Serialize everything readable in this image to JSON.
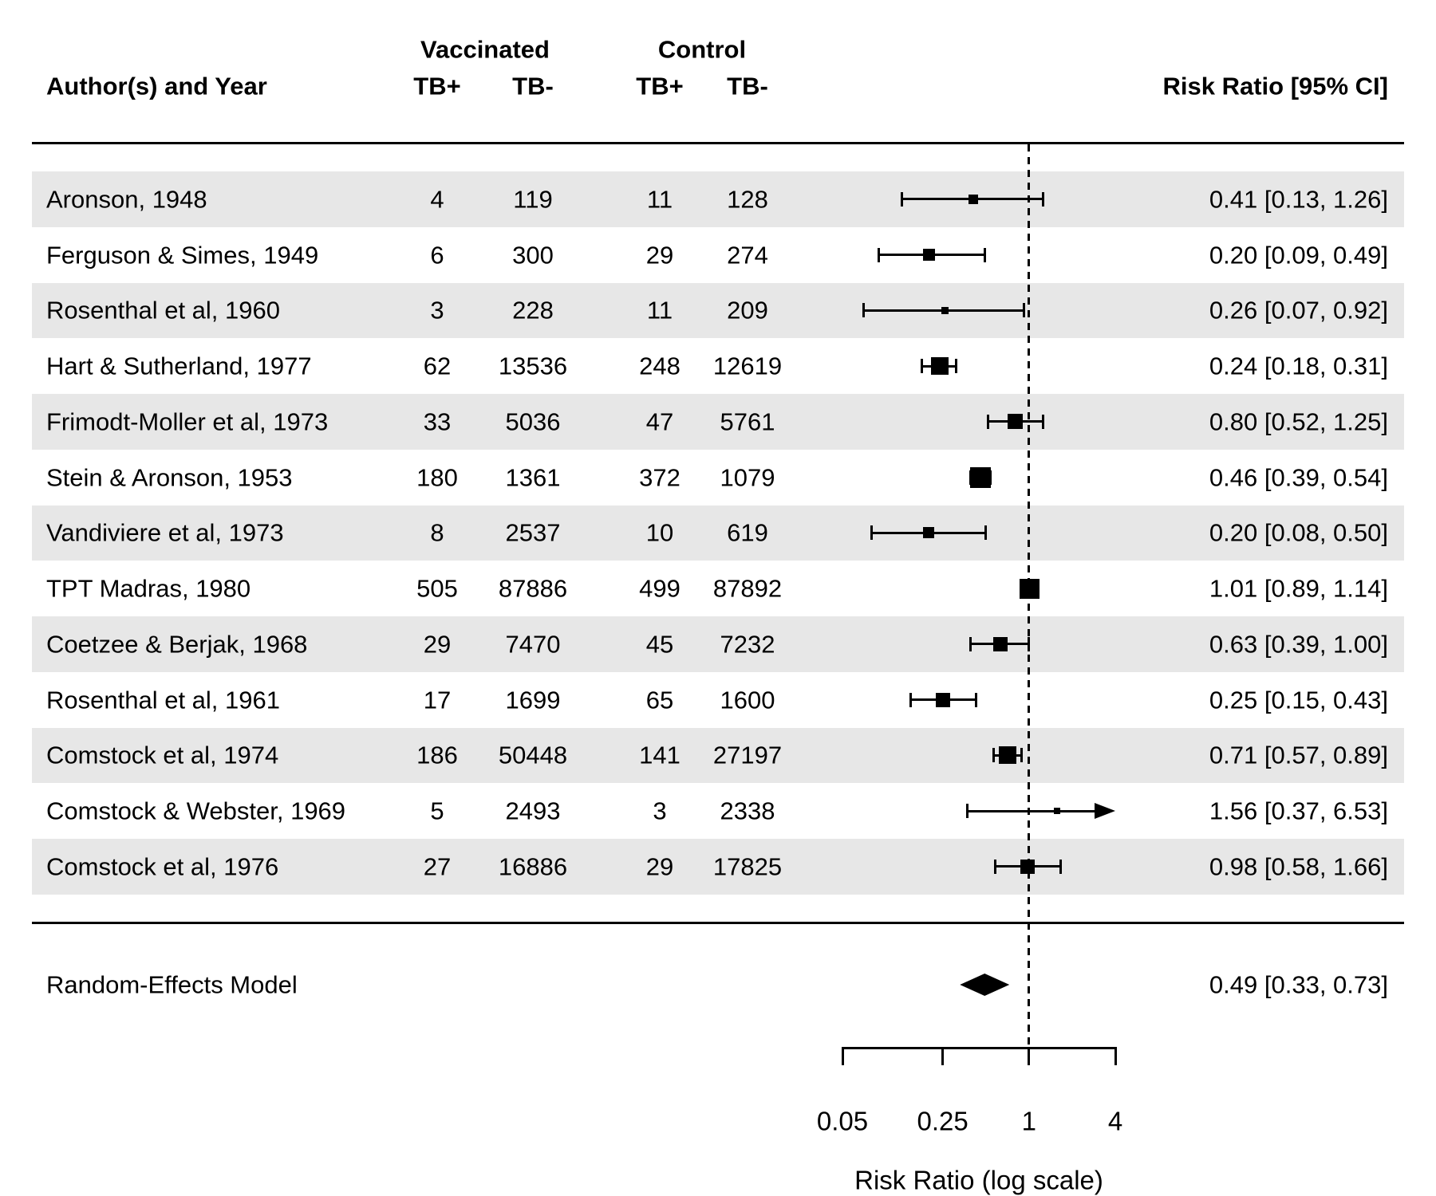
{
  "header": {
    "author_col": "Author(s) and Year",
    "vaccinated_group": "Vaccinated",
    "control_group": "Control",
    "tb_pos": "TB+",
    "tb_neg": "TB-",
    "rr_col": "Risk Ratio [95% CI]"
  },
  "summary_row": {
    "label": "Random-Effects Model",
    "ci_text": "0.49 [0.33, 0.73]"
  },
  "chart_data": {
    "type": "forest",
    "title": "",
    "x_axis": {
      "label": "Risk Ratio (log scale)",
      "scale": "log",
      "ticks": [
        0.05,
        0.25,
        1,
        4
      ],
      "tick_labels": [
        "0.05",
        "0.25",
        "1",
        "4"
      ],
      "xlim": [
        0.05,
        4
      ],
      "reference_line": 1
    },
    "columns": [
      "Author(s) and Year",
      "Vaccinated TB+",
      "Vaccinated TB-",
      "Control TB+",
      "Control TB-",
      "Risk Ratio [95% CI]"
    ],
    "studies": [
      {
        "author": "Aronson, 1948",
        "vaccinated_tb_pos": 4,
        "vaccinated_tb_neg": 119,
        "control_tb_pos": 11,
        "control_tb_neg": 128,
        "rr": 0.41,
        "ci_low": 0.13,
        "ci_high": 1.26,
        "ci_text": "0.41 [0.13, 1.26]",
        "point_size": 12,
        "shaded": true
      },
      {
        "author": "Ferguson & Simes, 1949",
        "vaccinated_tb_pos": 6,
        "vaccinated_tb_neg": 300,
        "control_tb_pos": 29,
        "control_tb_neg": 274,
        "rr": 0.2,
        "ci_low": 0.09,
        "ci_high": 0.49,
        "ci_text": "0.20 [0.09, 0.49]",
        "point_size": 15,
        "shaded": false
      },
      {
        "author": "Rosenthal et al, 1960",
        "vaccinated_tb_pos": 3,
        "vaccinated_tb_neg": 228,
        "control_tb_pos": 11,
        "control_tb_neg": 209,
        "rr": 0.26,
        "ci_low": 0.07,
        "ci_high": 0.92,
        "ci_text": "0.26 [0.07, 0.92]",
        "point_size": 9,
        "shaded": true
      },
      {
        "author": "Hart & Sutherland, 1977",
        "vaccinated_tb_pos": 62,
        "vaccinated_tb_neg": 13536,
        "control_tb_pos": 248,
        "control_tb_neg": 12619,
        "rr": 0.24,
        "ci_low": 0.18,
        "ci_high": 0.31,
        "ci_text": "0.24 [0.18, 0.31]",
        "point_size": 22,
        "shaded": false
      },
      {
        "author": "Frimodt-Moller et al, 1973",
        "vaccinated_tb_pos": 33,
        "vaccinated_tb_neg": 5036,
        "control_tb_pos": 47,
        "control_tb_neg": 5761,
        "rr": 0.8,
        "ci_low": 0.52,
        "ci_high": 1.25,
        "ci_text": "0.80 [0.52, 1.25]",
        "point_size": 19,
        "shaded": true
      },
      {
        "author": "Stein & Aronson, 1953",
        "vaccinated_tb_pos": 180,
        "vaccinated_tb_neg": 1361,
        "control_tb_pos": 372,
        "control_tb_neg": 1079,
        "rr": 0.46,
        "ci_low": 0.39,
        "ci_high": 0.54,
        "ci_text": "0.46 [0.39, 0.54]",
        "point_size": 26,
        "shaded": false
      },
      {
        "author": "Vandiviere et al, 1973",
        "vaccinated_tb_pos": 8,
        "vaccinated_tb_neg": 2537,
        "control_tb_pos": 10,
        "control_tb_neg": 619,
        "rr": 0.2,
        "ci_low": 0.08,
        "ci_high": 0.5,
        "ci_text": "0.20 [0.08, 0.50]",
        "point_size": 14,
        "shaded": true
      },
      {
        "author": "TPT Madras, 1980",
        "vaccinated_tb_pos": 505,
        "vaccinated_tb_neg": 87886,
        "control_tb_pos": 499,
        "control_tb_neg": 87892,
        "rr": 1.01,
        "ci_low": 0.89,
        "ci_high": 1.14,
        "ci_text": "1.01 [0.89, 1.14]",
        "point_size": 25,
        "shaded": false
      },
      {
        "author": "Coetzee & Berjak, 1968",
        "vaccinated_tb_pos": 29,
        "vaccinated_tb_neg": 7470,
        "control_tb_pos": 45,
        "control_tb_neg": 7232,
        "rr": 0.63,
        "ci_low": 0.39,
        "ci_high": 1.0,
        "ci_text": "0.63 [0.39, 1.00]",
        "point_size": 18,
        "shaded": true
      },
      {
        "author": "Rosenthal et al, 1961",
        "vaccinated_tb_pos": 17,
        "vaccinated_tb_neg": 1699,
        "control_tb_pos": 65,
        "control_tb_neg": 1600,
        "rr": 0.25,
        "ci_low": 0.15,
        "ci_high": 0.43,
        "ci_text": "0.25 [0.15, 0.43]",
        "point_size": 18,
        "shaded": false
      },
      {
        "author": "Comstock et al, 1974",
        "vaccinated_tb_pos": 186,
        "vaccinated_tb_neg": 50448,
        "control_tb_pos": 141,
        "control_tb_neg": 27197,
        "rr": 0.71,
        "ci_low": 0.57,
        "ci_high": 0.89,
        "ci_text": "0.71 [0.57, 0.89]",
        "point_size": 22,
        "shaded": true
      },
      {
        "author": "Comstock & Webster, 1969",
        "vaccinated_tb_pos": 5,
        "vaccinated_tb_neg": 2493,
        "control_tb_pos": 3,
        "control_tb_neg": 2338,
        "rr": 1.56,
        "ci_low": 0.37,
        "ci_high": 6.53,
        "ci_text": "1.56 [0.37, 6.53]",
        "point_size": 8,
        "shaded": false
      },
      {
        "author": "Comstock et al, 1976",
        "vaccinated_tb_pos": 27,
        "vaccinated_tb_neg": 16886,
        "control_tb_pos": 29,
        "control_tb_neg": 17825,
        "rr": 0.98,
        "ci_low": 0.58,
        "ci_high": 1.66,
        "ci_text": "0.98 [0.58, 1.66]",
        "point_size": 18,
        "shaded": true
      }
    ],
    "summary": {
      "label": "Random-Effects Model",
      "rr": 0.49,
      "ci_low": 0.33,
      "ci_high": 0.73,
      "ci_text": "0.49 [0.33, 0.73]"
    }
  },
  "colors": {
    "band": "#e7e7e7",
    "ink": "#000000",
    "background": "#ffffff"
  }
}
